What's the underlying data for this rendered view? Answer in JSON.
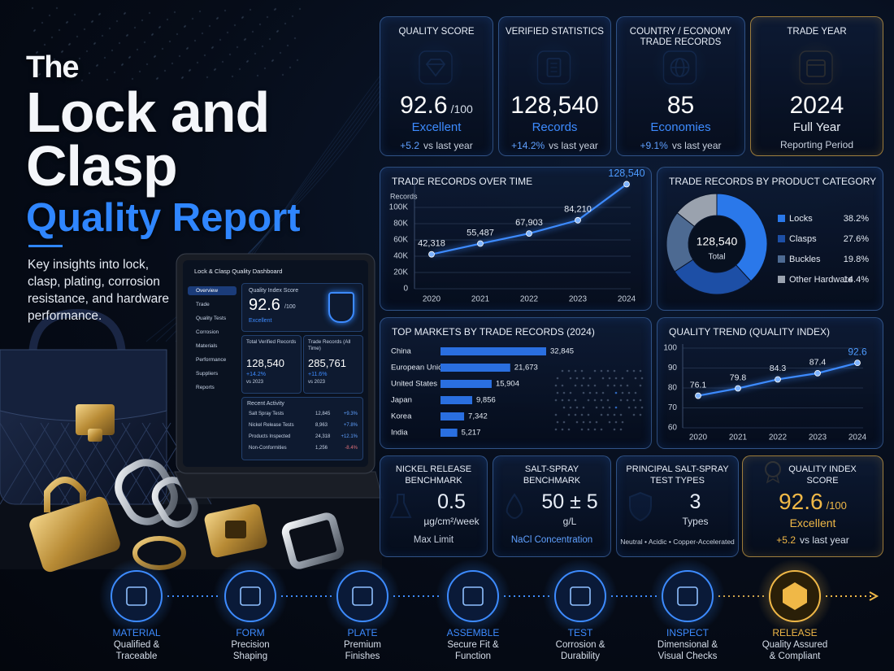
{
  "hero": {
    "title_small": "The",
    "title_line1": "Lock and",
    "title_line2": "Clasp",
    "title_accent": "Quality Report",
    "description": "Key insights into lock, clasp, plating, corrosion resistance, and hardware performance."
  },
  "tablet": {
    "header": "Lock & Clasp Quality Dashboard",
    "nav": [
      "Overview",
      "Trade",
      "Quality Tests",
      "Corrosion",
      "Materials",
      "Performance",
      "Suppliers",
      "Reports"
    ],
    "score_title": "Quality Index Score",
    "score_value": "92.6",
    "score_unit": "/100",
    "score_rating": "Excellent",
    "cards": [
      {
        "title": "Total Verified Records",
        "value": "128,540",
        "change": "+14.2%",
        "comparison": "vs 2023"
      },
      {
        "title": "Trade Records (All Time)",
        "value": "285,761",
        "change": "+11.6%",
        "comparison": "vs 2023"
      }
    ],
    "activity_title": "Recent Activity",
    "activity": [
      {
        "name": "Salt Spray Tests",
        "value": "12,845",
        "change": "+9.3%"
      },
      {
        "name": "Nickel Release Tests",
        "value": "8,963",
        "change": "+7.8%"
      },
      {
        "name": "Products Inspected",
        "value": "24,318",
        "change": "+12.1%"
      },
      {
        "name": "Non-Conformities",
        "value": "1,256",
        "change": "-8.4%"
      }
    ]
  },
  "kpis": [
    {
      "title": "QUALITY SCORE",
      "value": "92.6",
      "unit": "/100",
      "caption": "Excellent",
      "change": "+5.2",
      "comparison": "vs last year"
    },
    {
      "title": "VERIFIED STATISTICS",
      "value": "128,540",
      "caption": "Records",
      "change": "+14.2%",
      "comparison": "vs last year"
    },
    {
      "title": "COUNTRY / ECONOMY TRADE RECORDS",
      "value": "85",
      "caption": "Economies",
      "change": "+9.1%",
      "comparison": "vs last year"
    },
    {
      "title": "TRADE YEAR",
      "value": "2024",
      "caption": "Full Year",
      "note": "Reporting Period"
    }
  ],
  "benchmarks": [
    {
      "title": "NICKEL RELEASE BENCHMARK",
      "value": "0.5",
      "unit": "µg/cm²/week",
      "note": "Max Limit"
    },
    {
      "title": "SALT-SPRAY BENCHMARK",
      "value": "50 ± 5",
      "unit": "g/L",
      "note": "NaCl Concentration"
    },
    {
      "title": "PRINCIPAL SALT-SPRAY TEST TYPES",
      "value": "3",
      "unit": "Types",
      "note": "Neutral • Acidic • Copper-Accelerated"
    },
    {
      "title": "QUALITY INDEX SCORE",
      "value": "92.6",
      "unit": "/100",
      "caption": "Excellent",
      "change": "+5.2",
      "comparison": "vs last year"
    }
  ],
  "process": [
    {
      "name": "MATERIAL",
      "description": "Qualified & Traceable"
    },
    {
      "name": "FORM",
      "description": "Precision Shaping"
    },
    {
      "name": "PLATE",
      "description": "Premium Finishes"
    },
    {
      "name": "ASSEMBLE",
      "description": "Secure Fit & Function"
    },
    {
      "name": "TEST",
      "description": "Corrosion & Durability"
    },
    {
      "name": "INSPECT",
      "description": "Dimensional & Visual Checks"
    },
    {
      "name": "RELEASE",
      "description": "Quality Assured & Compliant"
    }
  ],
  "chart_data": [
    {
      "type": "line",
      "title": "TRADE RECORDS OVER TIME",
      "y_label": "Records",
      "categories": [
        "2020",
        "2021",
        "2022",
        "2023",
        "2024"
      ],
      "values": [
        42318,
        55487,
        67903,
        84210,
        128540
      ],
      "value_labels": [
        "42,318",
        "55,487",
        "67,903",
        "84,210",
        "128,540"
      ],
      "ylim": [
        0,
        130000
      ],
      "yticks": [
        0,
        {
          "value": 20000,
          "label": "20K"
        },
        {
          "value": 40000,
          "label": "40K"
        },
        {
          "value": 60000,
          "label": "60K"
        },
        {
          "value": 80000,
          "label": "80K"
        },
        {
          "value": 100000,
          "label": "100K"
        }
      ],
      "color": "#3d8bff",
      "grid": true
    },
    {
      "type": "donut",
      "title": "TRADE RECORDS BY PRODUCT CATEGORY",
      "categories": [
        "Locks",
        "Clasps",
        "Buckles",
        "Other Hardware"
      ],
      "values": [
        38.2,
        27.6,
        19.8,
        14.4
      ],
      "value_labels": [
        "38.2%",
        "27.6%",
        "19.8%",
        "14.4%"
      ],
      "colors": [
        "#2a78ea",
        "#1d4fa6",
        "#4d6a92",
        "#9aa2ae"
      ],
      "total": 128540,
      "total_label": "128,540",
      "total_caption": "Total"
    },
    {
      "type": "hbar",
      "title": "TOP MARKETS BY TRADE RECORDS (2024)",
      "categories": [
        "China",
        "European Union",
        "United States",
        "Japan",
        "Korea",
        "India"
      ],
      "values": [
        32845,
        21673,
        15904,
        9856,
        7342,
        5217
      ],
      "value_labels": [
        "32,845",
        "21,673",
        "15,904",
        "9,856",
        "7,342",
        "5,217"
      ],
      "color": "#2a6fe0"
    },
    {
      "type": "line",
      "title": "QUALITY TREND (QUALITY INDEX)",
      "categories": [
        "2020",
        "2021",
        "2022",
        "2023",
        "2024"
      ],
      "values": [
        76.1,
        79.8,
        84.3,
        87.4,
        92.6
      ],
      "ylim": [
        60,
        100
      ],
      "yticks": [
        60,
        70,
        80,
        90,
        100
      ],
      "color": "#3d8bff",
      "grid": true
    }
  ]
}
